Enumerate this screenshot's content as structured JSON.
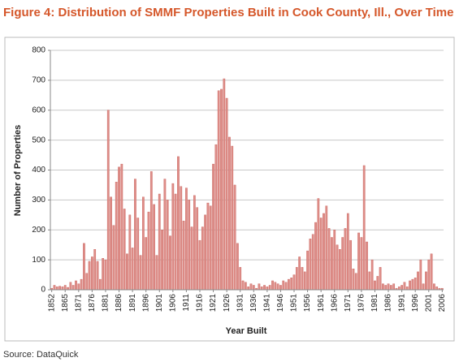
{
  "chart_data": {
    "type": "bar",
    "title": "Figure 4: Distribution of SMMF Properties Built in Cook County, Ill., Over Time",
    "ylabel": "Number of Properties",
    "xlabel": "Year Built",
    "source": "Source: DataQuick",
    "color": "#de8e89",
    "grid": true,
    "ylim": [
      0,
      800
    ],
    "yticks": [
      0,
      100,
      200,
      300,
      400,
      500,
      600,
      700,
      800
    ],
    "categories": [
      "1852",
      null,
      null,
      null,
      null,
      "1865",
      null,
      null,
      null,
      null,
      "1871",
      null,
      null,
      null,
      null,
      "1876",
      null,
      null,
      null,
      null,
      "1881",
      null,
      null,
      null,
      null,
      "1886",
      null,
      null,
      null,
      null,
      "1891",
      null,
      null,
      null,
      null,
      "1896",
      null,
      null,
      null,
      null,
      "1901",
      null,
      null,
      null,
      null,
      "1906",
      null,
      null,
      null,
      null,
      "1911",
      null,
      null,
      null,
      null,
      "1916",
      null,
      null,
      null,
      null,
      "1921",
      null,
      null,
      null,
      null,
      "1926",
      null,
      null,
      null,
      null,
      "1931",
      null,
      null,
      null,
      null,
      "1936",
      null,
      null,
      null,
      null,
      "1941",
      null,
      null,
      null,
      null,
      "1946",
      null,
      null,
      null,
      null,
      "1951",
      null,
      null,
      null,
      null,
      "1956",
      null,
      null,
      null,
      null,
      "1961",
      null,
      null,
      null,
      null,
      "1966",
      null,
      null,
      null,
      null,
      "1971",
      null,
      null,
      null,
      null,
      "1976",
      null,
      null,
      null,
      null,
      "1981",
      null,
      null,
      null,
      null,
      "1986",
      null,
      null,
      null,
      null,
      "1991",
      null,
      null,
      null,
      null,
      "1996",
      null,
      null,
      null,
      null,
      "2001",
      null,
      null,
      null,
      null,
      "2006"
    ],
    "values": [
      5,
      15,
      10,
      12,
      10,
      15,
      8,
      25,
      15,
      30,
      20,
      35,
      155,
      55,
      95,
      110,
      135,
      95,
      35,
      105,
      100,
      600,
      310,
      215,
      360,
      410,
      420,
      270,
      120,
      250,
      140,
      370,
      240,
      115,
      310,
      175,
      260,
      395,
      285,
      115,
      320,
      200,
      370,
      300,
      180,
      355,
      320,
      445,
      345,
      230,
      340,
      300,
      210,
      315,
      275,
      165,
      210,
      250,
      290,
      280,
      420,
      485,
      665,
      670,
      705,
      640,
      510,
      480,
      350,
      155,
      75,
      30,
      25,
      10,
      20,
      15,
      5,
      20,
      10,
      15,
      10,
      15,
      30,
      25,
      20,
      15,
      30,
      25,
      35,
      40,
      50,
      75,
      110,
      75,
      60,
      130,
      170,
      185,
      225,
      305,
      240,
      255,
      280,
      205,
      175,
      200,
      150,
      135,
      175,
      205,
      255,
      165,
      70,
      55,
      190,
      175,
      415,
      160,
      60,
      100,
      30,
      45,
      75,
      20,
      15,
      20,
      15,
      20,
      5,
      10,
      15,
      25,
      10,
      30,
      35,
      40,
      60,
      100,
      20,
      60,
      100,
      120,
      20,
      10,
      5,
      5
    ]
  }
}
